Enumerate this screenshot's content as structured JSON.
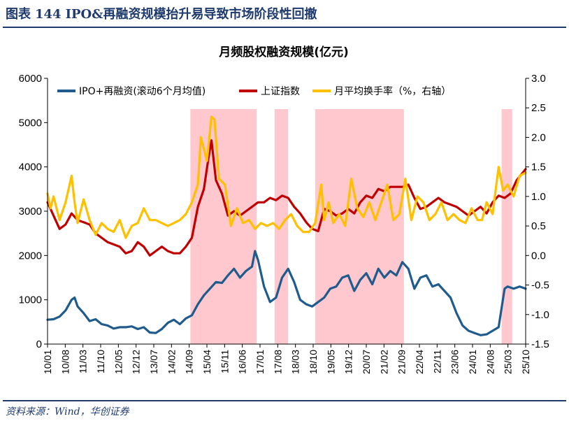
{
  "header": {
    "fig_label": "图表",
    "fig_number": "144",
    "title": "IPO&再融资规模抬升易导致市场阶段性回撤"
  },
  "source": "资料来源：Wind，华创证券",
  "chart_data": {
    "type": "line",
    "title": "月频股权融资规模(亿元)",
    "colors": {
      "ipo": "#1f5b8c",
      "sse": "#c00000",
      "turnover": "#ffc000",
      "shade": "#ffc7ce",
      "frame": "#1f3b6e"
    },
    "left_axis": {
      "min": 0,
      "max": 6000,
      "ticks": [
        "6000",
        "5000",
        "4000",
        "3000",
        "2000",
        "1000",
        "0"
      ]
    },
    "right_axis": {
      "min": -1.5,
      "max": 3.0,
      "ticks": [
        "3.0",
        "2.5",
        "2.0",
        "1.5",
        "1.0",
        "0.5",
        "0.0",
        "-0.5",
        "-1.0",
        "-1.5"
      ]
    },
    "x_range": [
      2010.0,
      2025.9
    ],
    "x_tick_labels": [
      "10/01",
      "10/08",
      "11/03",
      "11/10",
      "12/05",
      "12/12",
      "13/07",
      "14/02",
      "14/09",
      "15/04",
      "15/11",
      "16/06",
      "17/01",
      "17/08",
      "18/03",
      "18/10",
      "19/05",
      "19/12",
      "20/07",
      "21/02",
      "21/09",
      "22/04",
      "22/11",
      "23/06",
      "24/01",
      "24/08",
      "25/03",
      "25/10"
    ],
    "shaded_periods": [
      [
        2014.75,
        2016.95
      ],
      [
        2017.55,
        2018.0
      ],
      [
        2018.9,
        2021.85
      ],
      [
        2025.1,
        2025.45
      ]
    ],
    "legend": [
      "IPO+再融资(滚动6个月均值)",
      "上证指数",
      "月平均换手率（%，右轴）"
    ],
    "series": [
      {
        "name": "IPO+再融资(滚动6个月均值)",
        "axis": "left",
        "color": "#1f5b8c",
        "x": [
          2010.0,
          2010.2,
          2010.4,
          2010.6,
          2010.8,
          2010.9,
          2011.0,
          2011.2,
          2011.4,
          2011.6,
          2011.8,
          2012.0,
          2012.2,
          2012.4,
          2012.6,
          2012.8,
          2013.0,
          2013.2,
          2013.4,
          2013.6,
          2013.8,
          2014.0,
          2014.2,
          2014.4,
          2014.6,
          2014.8,
          2015.0,
          2015.2,
          2015.4,
          2015.6,
          2015.8,
          2016.0,
          2016.2,
          2016.4,
          2016.6,
          2016.8,
          2016.9,
          2017.0,
          2017.2,
          2017.4,
          2017.6,
          2017.8,
          2018.0,
          2018.2,
          2018.4,
          2018.6,
          2018.8,
          2019.0,
          2019.2,
          2019.4,
          2019.6,
          2019.8,
          2020.0,
          2020.2,
          2020.4,
          2020.6,
          2020.8,
          2021.0,
          2021.2,
          2021.4,
          2021.6,
          2021.8,
          2022.0,
          2022.2,
          2022.4,
          2022.6,
          2022.8,
          2023.0,
          2023.2,
          2023.4,
          2023.6,
          2023.8,
          2024.0,
          2024.2,
          2024.4,
          2024.6,
          2024.8,
          2025.0,
          2025.2,
          2025.3,
          2025.5,
          2025.7,
          2025.9
        ],
        "values": [
          550,
          560,
          620,
          760,
          1000,
          1050,
          850,
          700,
          520,
          560,
          450,
          420,
          350,
          380,
          380,
          400,
          340,
          380,
          260,
          250,
          340,
          480,
          550,
          450,
          580,
          650,
          900,
          1100,
          1250,
          1400,
          1380,
          1550,
          1700,
          1500,
          1650,
          1750,
          2100,
          1900,
          1300,
          950,
          1050,
          1500,
          1700,
          1400,
          1000,
          900,
          850,
          950,
          1050,
          1250,
          1300,
          1500,
          1550,
          1200,
          1450,
          1600,
          1350,
          1700,
          1500,
          1650,
          1550,
          1850,
          1700,
          1250,
          1500,
          1550,
          1300,
          1350,
          1200,
          1050,
          700,
          420,
          300,
          250,
          200,
          220,
          300,
          380,
          1250,
          1300,
          1250,
          1300,
          1250
        ]
      },
      {
        "name": "上证指数",
        "axis": "left",
        "color": "#c00000",
        "x": [
          2010.0,
          2010.2,
          2010.4,
          2010.6,
          2010.8,
          2011.0,
          2011.2,
          2011.4,
          2011.6,
          2011.8,
          2012.0,
          2012.2,
          2012.4,
          2012.6,
          2012.8,
          2013.0,
          2013.2,
          2013.4,
          2013.6,
          2013.8,
          2014.0,
          2014.2,
          2014.4,
          2014.6,
          2014.8,
          2015.0,
          2015.2,
          2015.35,
          2015.45,
          2015.6,
          2015.8,
          2016.0,
          2016.2,
          2016.4,
          2016.6,
          2016.8,
          2017.0,
          2017.2,
          2017.4,
          2017.6,
          2017.8,
          2018.0,
          2018.2,
          2018.4,
          2018.6,
          2018.8,
          2019.0,
          2019.2,
          2019.4,
          2019.6,
          2019.8,
          2020.0,
          2020.2,
          2020.4,
          2020.6,
          2020.8,
          2021.0,
          2021.2,
          2021.4,
          2021.6,
          2021.8,
          2022.0,
          2022.2,
          2022.4,
          2022.6,
          2022.8,
          2023.0,
          2023.2,
          2023.4,
          2023.6,
          2023.8,
          2024.0,
          2024.2,
          2024.4,
          2024.6,
          2024.8,
          2025.0,
          2025.2,
          2025.4,
          2025.6,
          2025.9
        ],
        "values": [
          3200,
          2900,
          2600,
          2700,
          2950,
          2800,
          2750,
          2700,
          2500,
          2400,
          2300,
          2250,
          2200,
          2050,
          2100,
          2300,
          2200,
          2000,
          2100,
          2200,
          2100,
          2050,
          2050,
          2200,
          2400,
          3100,
          3500,
          4200,
          4600,
          3700,
          3400,
          2900,
          3000,
          2900,
          3000,
          3100,
          3200,
          3200,
          3300,
          3250,
          3350,
          3300,
          3100,
          2950,
          2750,
          2600,
          2550,
          3050,
          3000,
          2900,
          2950,
          3050,
          2950,
          3200,
          3350,
          3300,
          3500,
          3450,
          3550,
          3550,
          3550,
          3600,
          3300,
          3050,
          3100,
          3200,
          3300,
          3200,
          3150,
          3100,
          3000,
          2900,
          3000,
          3100,
          2950,
          3200,
          3350,
          3300,
          3400,
          3700,
          3950
        ]
      },
      {
        "name": "月平均换手率（%，右轴）",
        "axis": "right",
        "color": "#ffc000",
        "x": [
          2010.0,
          2010.1,
          2010.2,
          2010.4,
          2010.6,
          2010.8,
          2010.9,
          2011.0,
          2011.2,
          2011.4,
          2011.6,
          2011.8,
          2012.0,
          2012.2,
          2012.4,
          2012.6,
          2012.8,
          2013.0,
          2013.2,
          2013.4,
          2013.6,
          2013.8,
          2014.0,
          2014.2,
          2014.4,
          2014.6,
          2014.8,
          2015.0,
          2015.1,
          2015.3,
          2015.45,
          2015.55,
          2015.7,
          2015.9,
          2016.1,
          2016.3,
          2016.5,
          2016.7,
          2016.9,
          2017.1,
          2017.3,
          2017.5,
          2017.7,
          2017.9,
          2018.1,
          2018.3,
          2018.5,
          2018.7,
          2018.9,
          2019.1,
          2019.2,
          2019.35,
          2019.5,
          2019.7,
          2019.9,
          2020.1,
          2020.3,
          2020.5,
          2020.7,
          2020.9,
          2021.1,
          2021.3,
          2021.5,
          2021.7,
          2021.9,
          2022.1,
          2022.3,
          2022.5,
          2022.7,
          2022.9,
          2023.1,
          2023.3,
          2023.5,
          2023.7,
          2023.9,
          2024.1,
          2024.3,
          2024.45,
          2024.6,
          2024.8,
          2025.0,
          2025.15,
          2025.3,
          2025.5,
          2025.7,
          2025.9
        ],
        "values": [
          1.05,
          0.8,
          1.0,
          0.6,
          0.9,
          1.35,
          0.9,
          0.55,
          0.95,
          0.6,
          0.35,
          0.55,
          0.45,
          0.4,
          0.6,
          0.3,
          0.5,
          0.55,
          0.8,
          0.6,
          0.6,
          0.55,
          0.5,
          0.55,
          0.6,
          0.7,
          0.9,
          1.2,
          2.0,
          1.6,
          2.35,
          2.3,
          1.3,
          1.2,
          0.5,
          0.8,
          0.55,
          0.6,
          0.45,
          0.55,
          0.5,
          0.55,
          0.45,
          0.6,
          0.7,
          0.5,
          0.4,
          0.4,
          0.55,
          1.2,
          0.6,
          0.9,
          0.55,
          0.7,
          0.5,
          1.3,
          0.8,
          0.65,
          0.9,
          0.6,
          0.9,
          1.2,
          0.6,
          0.7,
          1.3,
          0.6,
          1.0,
          0.9,
          0.6,
          0.7,
          0.9,
          0.6,
          0.7,
          0.6,
          0.55,
          0.8,
          0.6,
          0.6,
          0.9,
          0.7,
          1.5,
          1.1,
          1.2,
          1.0,
          1.35,
          1.4
        ]
      }
    ]
  }
}
